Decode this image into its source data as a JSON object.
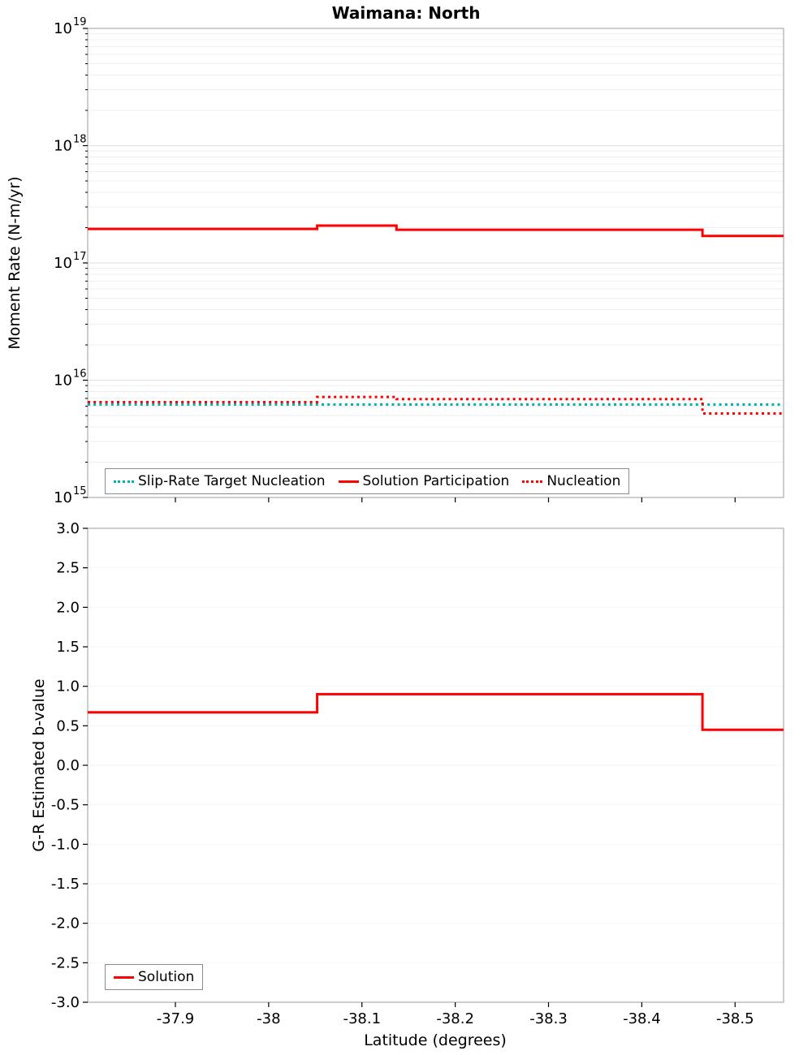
{
  "chart_data": [
    {
      "type": "line",
      "title": "Waimana: North",
      "ylabel": "Moment Rate (N-m/yr)",
      "xlabel": "",
      "yscale": "log",
      "ylim_exp": [
        15,
        19
      ],
      "xlim": [
        -37.806,
        -38.552
      ],
      "xticks": [
        -37.9,
        -38,
        -38.1,
        -38.2,
        -38.3,
        -38.4,
        -38.5
      ],
      "grid": true,
      "legend_position": "lower-center-inside",
      "series": [
        {
          "name": "Slip-Rate Target Nucleation",
          "color": "#00b3b3",
          "dash": "dotted",
          "width": 3,
          "points": [
            [
              -37.806,
              6200000000000000.0
            ],
            [
              -38.552,
              6200000000000000.0
            ]
          ]
        },
        {
          "name": "Solution Participation",
          "color": "#ff0000",
          "dash": "solid",
          "width": 3,
          "points": [
            [
              -37.806,
              1.95e+17
            ],
            [
              -38.052,
              1.95e+17
            ],
            [
              -38.052,
              2.08e+17
            ],
            [
              -38.137,
              2.08e+17
            ],
            [
              -38.137,
              1.92e+17
            ],
            [
              -38.465,
              1.92e+17
            ],
            [
              -38.465,
              1.7e+17
            ],
            [
              -38.552,
              1.7e+17
            ]
          ]
        },
        {
          "name": "Nucleation",
          "color": "#ff0000",
          "dash": "dotted",
          "width": 3,
          "points": [
            [
              -37.806,
              6500000000000000.0
            ],
            [
              -38.052,
              6500000000000000.0
            ],
            [
              -38.052,
              7200000000000000.0
            ],
            [
              -38.137,
              7200000000000000.0
            ],
            [
              -38.137,
              6900000000000000.0
            ],
            [
              -38.465,
              6900000000000000.0
            ],
            [
              -38.465,
              5200000000000000.0
            ],
            [
              -38.552,
              5200000000000000.0
            ]
          ]
        }
      ]
    },
    {
      "type": "line",
      "title": "",
      "ylabel": "G-R Estimated b-value",
      "xlabel": "Latitude (degrees)",
      "yscale": "linear",
      "ylim": [
        -3.0,
        3.0
      ],
      "ytick_step": 0.5,
      "xlim": [
        -37.806,
        -38.552
      ],
      "xticks": [
        -37.9,
        -38,
        -38.1,
        -38.2,
        -38.3,
        -38.4,
        -38.5
      ],
      "grid": true,
      "legend_position": "lower-left-inside",
      "series": [
        {
          "name": "Solution",
          "color": "#ff0000",
          "dash": "solid",
          "width": 3,
          "points": [
            [
              -37.806,
              0.67
            ],
            [
              -38.052,
              0.67
            ],
            [
              -38.052,
              0.9
            ],
            [
              -38.465,
              0.9
            ],
            [
              -38.465,
              0.45
            ],
            [
              -38.552,
              0.45
            ]
          ]
        }
      ]
    }
  ],
  "colors": {
    "solution": "#ff0000",
    "slip_rate_target": "#00b3b3",
    "frame": "#adadad",
    "grid_major": "#e0e0e0",
    "grid_minor": "#efefef"
  }
}
